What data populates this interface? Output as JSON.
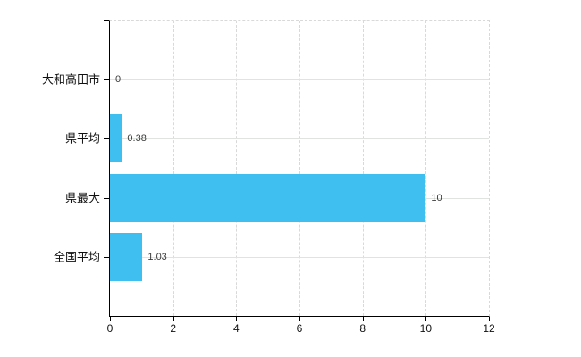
{
  "chart_data": {
    "type": "bar",
    "orientation": "horizontal",
    "categories": [
      "大和高田市",
      "県平均",
      "県最大",
      "全国平均"
    ],
    "values": [
      0,
      0.38,
      10,
      1.03
    ],
    "value_labels": [
      "0",
      "0.38",
      "10",
      "1.03"
    ],
    "x_ticks": [
      "0",
      "2",
      "4",
      "6",
      "8",
      "10",
      "12"
    ],
    "x_tick_values": [
      0,
      2,
      4,
      6,
      8,
      10,
      12
    ],
    "xlim": [
      0,
      12
    ],
    "bar_color": "#3fbfef",
    "axis_color": "#000000",
    "vertical_grid": "dashed",
    "horizontal_grid": "solid",
    "grid_color": "#d9d9d9",
    "legend": false,
    "background": "#ffffff"
  }
}
